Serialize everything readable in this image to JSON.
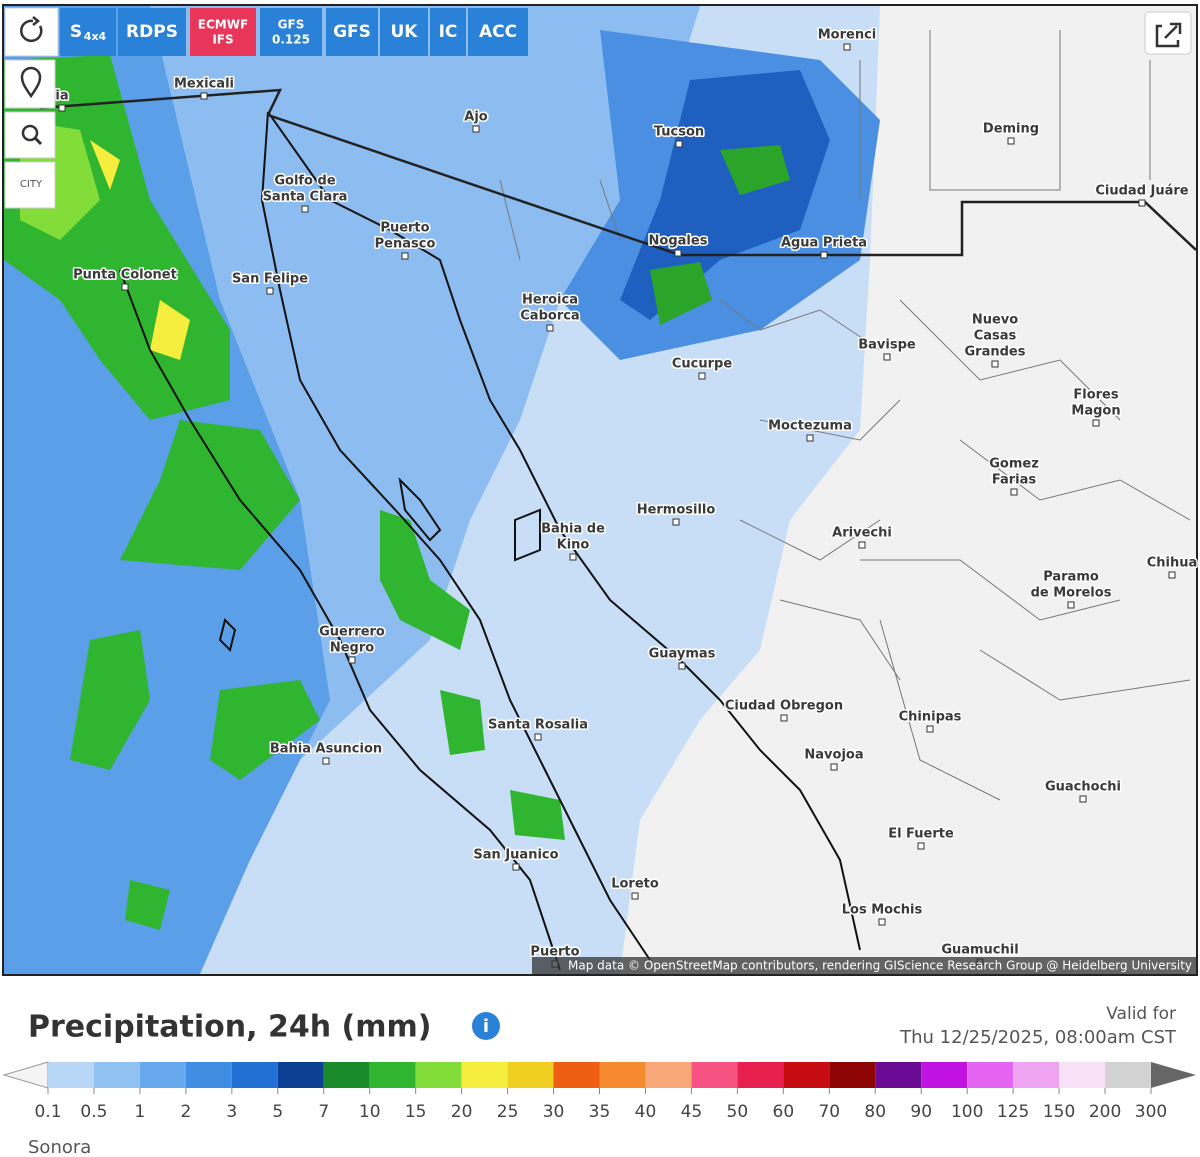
{
  "toolbar": {
    "models": [
      {
        "text": "S",
        "sub": "4x4",
        "color": "#2a82d8"
      },
      {
        "text": "RDPS",
        "color": "#2a82d8"
      },
      {
        "text": "ECMWF",
        "sub": "IFS",
        "color": "#e8365a"
      },
      {
        "text": "GFS",
        "sub": "0.125",
        "color": "#2a82d8"
      },
      {
        "text": "GFS",
        "color": "#2a82d8"
      },
      {
        "text": "UK",
        "color": "#2a82d8"
      },
      {
        "text": "IC",
        "color": "#2a82d8"
      },
      {
        "text": "ACC",
        "color": "#2a82d8"
      }
    ],
    "city_button": "CITY"
  },
  "map": {
    "cities": [
      {
        "lines": [
          "ia"
        ]
      },
      {
        "lines": [
          "Morenci"
        ]
      },
      {
        "lines": [
          "Mexicali"
        ]
      },
      {
        "lines": [
          "Ajo"
        ]
      },
      {
        "lines": [
          "Tucson"
        ]
      },
      {
        "lines": [
          "Deming"
        ]
      },
      {
        "lines": [
          "Golfo de",
          "Santa Clara"
        ]
      },
      {
        "lines": [
          "Puerto",
          "Penasco"
        ]
      },
      {
        "lines": [
          "San Felipe"
        ]
      },
      {
        "lines": [
          "Nogales"
        ]
      },
      {
        "lines": [
          "Agua Prieta"
        ]
      },
      {
        "lines": [
          "Ciudad Juáre"
        ]
      },
      {
        "lines": [
          "Punta Colonet"
        ]
      },
      {
        "lines": [
          "Heroica",
          "Caborca"
        ]
      },
      {
        "lines": [
          "Bavispe"
        ]
      },
      {
        "lines": [
          "Nuevo",
          "Casas",
          "Grandes"
        ]
      },
      {
        "lines": [
          "Cucurpe"
        ]
      },
      {
        "lines": [
          "Flores",
          "Magon"
        ]
      },
      {
        "lines": [
          "Moctezuma"
        ]
      },
      {
        "lines": [
          "Gomez",
          "Farias"
        ]
      },
      {
        "lines": [
          "Hermosillo"
        ]
      },
      {
        "lines": [
          "Bahia de",
          "Kino"
        ]
      },
      {
        "lines": [
          "Arivechi"
        ]
      },
      {
        "lines": [
          "Chihua"
        ]
      },
      {
        "lines": [
          "Paramo",
          "de Morelos"
        ]
      },
      {
        "lines": [
          "Guerrero",
          "Negro"
        ]
      },
      {
        "lines": [
          "Guaymas"
        ]
      },
      {
        "lines": [
          "Ciudad Obregon"
        ]
      },
      {
        "lines": [
          "Chinipas"
        ]
      },
      {
        "lines": [
          "Santa Rosalia"
        ]
      },
      {
        "lines": [
          "Bahia Asuncion"
        ]
      },
      {
        "lines": [
          "Navojoa"
        ]
      },
      {
        "lines": [
          "Guachochi"
        ]
      },
      {
        "lines": [
          "El Fuerte"
        ]
      },
      {
        "lines": [
          "San Juanico"
        ]
      },
      {
        "lines": [
          "Loreto"
        ]
      },
      {
        "lines": [
          "Los Mochis"
        ]
      },
      {
        "lines": [
          "Guamuchil"
        ]
      },
      {
        "lines": [
          "Puerto"
        ]
      }
    ],
    "attribution": "Map data © OpenStreetMap contributors, rendering GIScience Research Group @ Heidelberg University"
  },
  "legend": {
    "title": "Precipitation, 24h (mm)",
    "valid_label": "Valid for",
    "valid_time": "Thu 12/25/2025, 08:00am CST",
    "ticks": [
      0.1,
      0.5,
      1,
      2,
      3,
      5,
      7,
      10,
      15,
      20,
      25,
      30,
      35,
      40,
      45,
      50,
      60,
      70,
      80,
      90,
      100,
      125,
      150,
      200,
      300
    ],
    "colors": [
      "#b8d6f6",
      "#92c2f2",
      "#68a8ec",
      "#3f8ee4",
      "#2270d4",
      "#0d3f94",
      "#1a8a2a",
      "#2fb52f",
      "#82dd3a",
      "#f6ee3e",
      "#f0cf22",
      "#ee5e12",
      "#f68a2e",
      "#f8a878",
      "#f65282",
      "#e8204e",
      "#c60c12",
      "#8e0404",
      "#6a0a92",
      "#c012e0",
      "#e264f0",
      "#eea4f0",
      "#f8e2f8",
      "#d2d2d2"
    ],
    "region": "Sonora"
  }
}
